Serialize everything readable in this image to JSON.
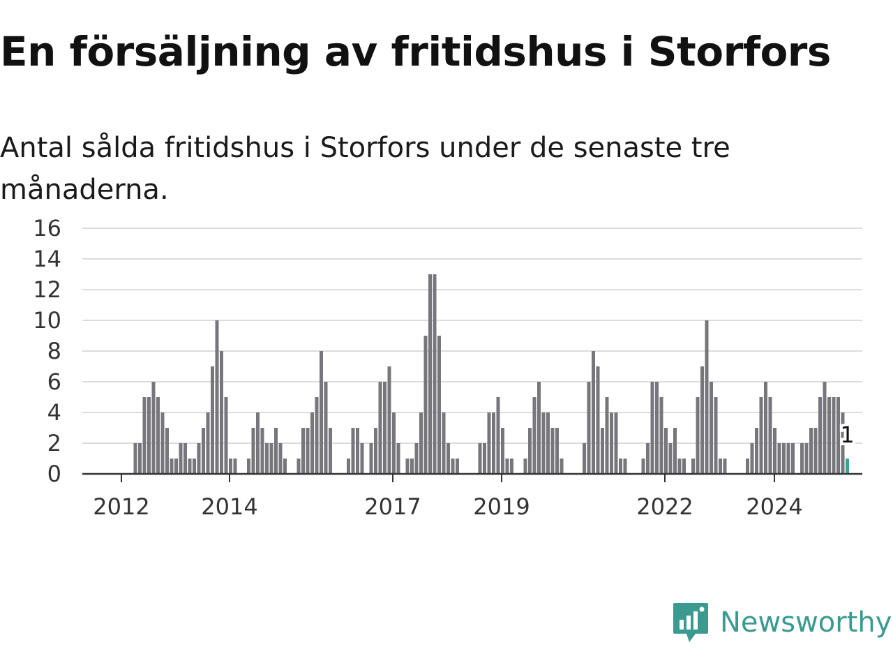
{
  "header": {
    "title": "En försäljning av fritidshus i Storfors",
    "subtitle": "Antal sålda fritidshus i Storfors under de senaste tre månaderna."
  },
  "brand": {
    "name": "Newsworthy",
    "icon": "newsworthy-logo-icon",
    "color": "#3a9a90"
  },
  "chart_data": {
    "type": "bar",
    "title": "En försäljning av fritidshus i Storfors",
    "subtitle": "Antal sålda fritidshus i Storfors under de senaste tre månaderna.",
    "xlabel": "",
    "ylabel": "",
    "ylim": [
      0,
      16
    ],
    "yticks": [
      0,
      2,
      4,
      6,
      8,
      10,
      12,
      14,
      16
    ],
    "xticks": [
      "2012",
      "2014",
      "2017",
      "2019",
      "2022",
      "2024"
    ],
    "grid": true,
    "legend": "none",
    "bar_color": "#76767c",
    "highlight_color": "#3aa398",
    "series": [
      {
        "values": [
          0,
          0,
          0,
          0,
          0,
          0,
          0,
          0,
          0,
          0,
          0,
          2,
          2,
          5,
          5,
          6,
          5,
          4,
          3,
          1,
          1,
          2,
          2,
          1,
          1,
          2,
          3,
          4,
          7,
          10,
          8,
          5,
          1,
          1,
          0,
          0,
          1,
          3,
          4,
          3,
          2,
          2,
          3,
          2,
          1,
          0,
          0,
          1,
          3,
          3,
          4,
          5,
          8,
          6,
          3,
          0,
          0,
          0,
          1,
          3,
          3,
          2,
          0,
          2,
          3,
          6,
          6,
          7,
          4,
          2,
          0,
          1,
          1,
          2,
          4,
          9,
          13,
          13,
          9,
          4,
          2,
          1,
          1,
          0,
          0,
          0,
          0,
          2,
          2,
          4,
          4,
          5,
          3,
          1,
          1,
          0,
          0,
          1,
          3,
          5,
          6,
          4,
          4,
          3,
          3,
          1,
          0,
          0,
          0,
          0,
          2,
          6,
          8,
          7,
          3,
          5,
          4,
          4,
          1,
          1,
          0,
          0,
          0,
          1,
          2,
          6,
          6,
          5,
          3,
          2,
          3,
          1,
          1,
          0,
          1,
          5,
          7,
          10,
          6,
          5,
          1,
          1,
          0,
          0,
          0,
          0,
          1,
          2,
          3,
          5,
          6,
          5,
          3,
          2,
          2,
          2,
          2,
          0,
          2,
          2,
          3,
          3,
          5,
          6,
          5,
          5,
          5,
          4,
          1
        ]
      }
    ],
    "annotations": [
      {
        "text": "1"
      }
    ]
  }
}
